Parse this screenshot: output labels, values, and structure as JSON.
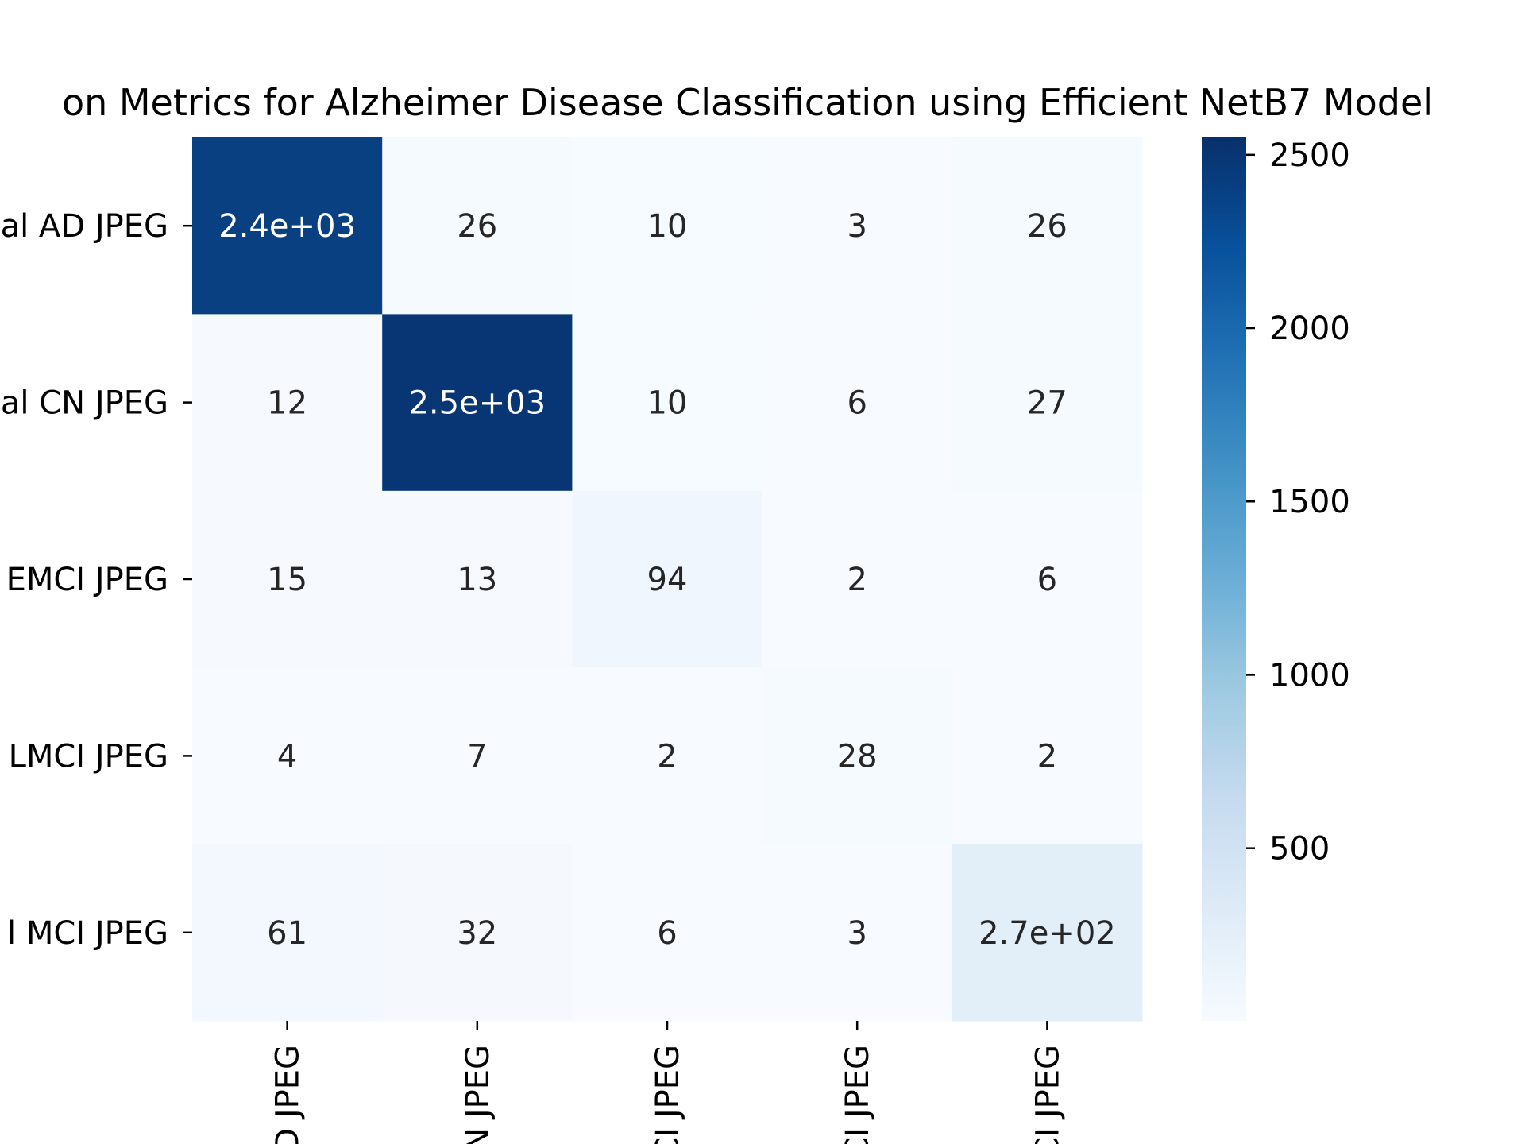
{
  "chart_data": {
    "type": "heatmap",
    "title": "on Metrics for Alzheimer Disease Classification using Efficient NetB7 Model",
    "row_labels": [
      "al AD JPEG",
      "al CN JPEG",
      "EMCI JPEG",
      "LMCI JPEG",
      "l MCI JPEG"
    ],
    "col_labels": [
      "D JPEG",
      "N JPEG",
      "CI JPEG",
      "CI JPEG",
      "CI JPEG"
    ],
    "values": [
      [
        2400,
        26,
        10,
        3,
        26
      ],
      [
        12,
        2500,
        10,
        6,
        27
      ],
      [
        15,
        13,
        94,
        2,
        6
      ],
      [
        4,
        7,
        2,
        28,
        2
      ],
      [
        61,
        32,
        6,
        3,
        270
      ]
    ],
    "annotations": [
      [
        "2.4e+03",
        "26",
        "10",
        "3",
        "26"
      ],
      [
        "12",
        "2.5e+03",
        "10",
        "6",
        "27"
      ],
      [
        "15",
        "13",
        "94",
        "2",
        "6"
      ],
      [
        "4",
        "7",
        "2",
        "28",
        "2"
      ],
      [
        "61",
        "32",
        "6",
        "3",
        "2.7e+02"
      ]
    ],
    "colormap": "Blues",
    "colorbar": {
      "range": [
        2,
        2550
      ],
      "ticks": [
        500,
        1000,
        1500,
        2000,
        2500
      ],
      "tick_labels": [
        "500",
        "1000",
        "1500",
        "2000",
        "2500"
      ]
    },
    "grid": false,
    "legend": "colorbar-right"
  }
}
